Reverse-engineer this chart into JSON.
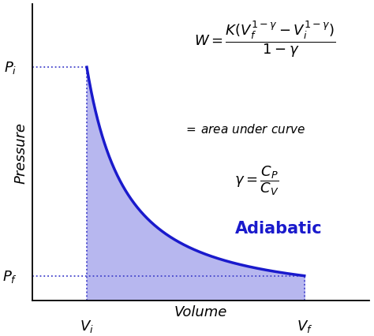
{
  "bg_color": "#ffffff",
  "curve_color": "#1a1acc",
  "fill_color": "#b0b0ee",
  "dashed_color": "#4444cc",
  "Vi": 1.0,
  "Vf": 5.0,
  "gamma": 1.4,
  "K": 5.5,
  "x_min": 0.0,
  "x_max": 6.2,
  "y_min": 0.0,
  "y_max": 7.0,
  "Pi_label": "$P_i$",
  "Pf_label": "$P_f$",
  "Vi_label": "$V_i$",
  "Vf_label": "$V_f$",
  "ylabel": "Pressure",
  "xlabel": "Volume",
  "curve_linewidth": 2.5,
  "dashed_linewidth": 1.3,
  "label_fontsize": 13,
  "axis_label_fontsize": 13,
  "eq1_fontsize": 13,
  "eq2_fontsize": 11,
  "eq3_fontsize": 13,
  "adiabatic_fontsize": 15
}
